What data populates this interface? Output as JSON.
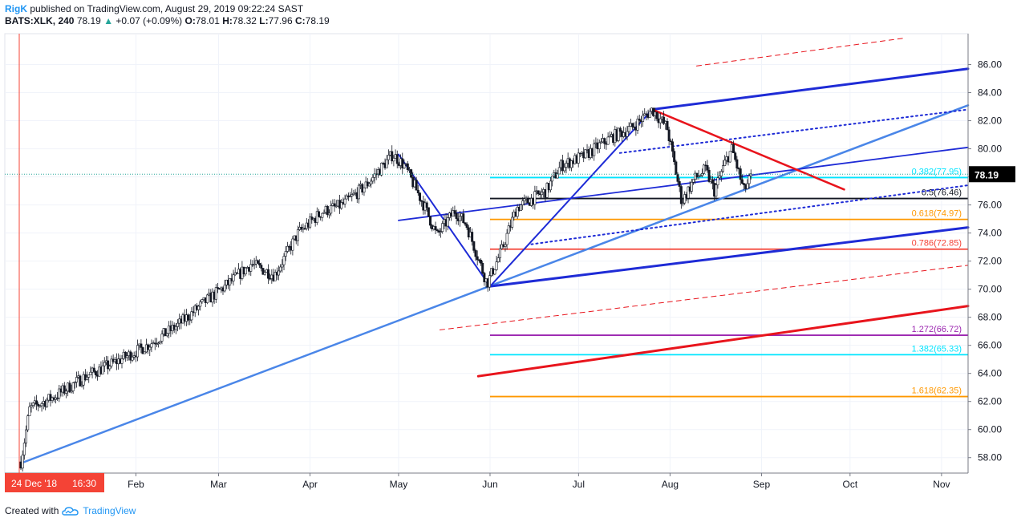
{
  "header": {
    "author": "RigK",
    "published": "published on TradingView.com, August 29, 2019 09:22:24 SAST",
    "ticker": "BATS:XLK, 240",
    "last": "78.19",
    "arrow": "▲",
    "change": "+0.07 (+0.09%)",
    "o_label": "O:",
    "o_value": "78.01",
    "h_label": "H:",
    "h_value": "78.32",
    "l_label": "L:",
    "l_value": "77.96",
    "c_label": "C:",
    "c_value": "78.19"
  },
  "footer": {
    "created": "Created with",
    "brand": "TradingView",
    "logo_icon": "tradingview-cloud-icon"
  },
  "cursor_label": {
    "date": "24 Dec '18",
    "time": "16:30"
  },
  "colors": {
    "candle_up": "#26a69a",
    "candle_down": "#ef5350",
    "fib_cyan": "#00e5ff",
    "fib_orange": "#ff9800",
    "fib_red": "#f44336",
    "fib_purple": "#9c27b0",
    "fib_black": "#131722",
    "trend_blue": "#1e2bd6",
    "trend_light": "#4a86e8",
    "trend_red": "#e8141c",
    "price_tag": "#000000"
  },
  "chart_data": {
    "type": "candlestick",
    "title": "",
    "x_ticks": [
      "Feb",
      "Mar",
      "Apr",
      "May",
      "Jun",
      "Jul",
      "Aug",
      "Sep",
      "Oct",
      "Nov"
    ],
    "y_ticks": [
      "58.00",
      "60.00",
      "62.00",
      "64.00",
      "66.00",
      "68.00",
      "70.00",
      "72.00",
      "74.00",
      "76.00",
      "78.00",
      "80.00",
      "82.00",
      "84.00",
      "86.00"
    ],
    "y_range": [
      56.9,
      88.2
    ],
    "last_price": 78.19,
    "last_price_label": "78.19",
    "x_range": [
      "2018-12-24",
      "2019-11-10"
    ],
    "month_ticks_dates": [
      "2019-02-01",
      "2019-03-01",
      "2019-04-01",
      "2019-05-01",
      "2019-06-01",
      "2019-07-01",
      "2019-08-01",
      "2019-09-01",
      "2019-10-01",
      "2019-11-01"
    ],
    "price_path": [
      [
        "2018-12-24",
        57.7
      ],
      [
        "2018-12-27",
        61.5
      ],
      [
        "2019-01-04",
        62.3
      ],
      [
        "2019-01-15",
        63.8
      ],
      [
        "2019-01-25",
        64.8
      ],
      [
        "2019-02-05",
        66.0
      ],
      [
        "2019-02-15",
        67.4
      ],
      [
        "2019-02-25",
        69.2
      ],
      [
        "2019-03-05",
        70.5
      ],
      [
        "2019-03-12",
        71.8
      ],
      [
        "2019-03-20",
        71.0
      ],
      [
        "2019-03-28",
        74.0
      ],
      [
        "2019-04-05",
        75.5
      ],
      [
        "2019-04-12",
        76.0
      ],
      [
        "2019-04-20",
        77.4
      ],
      [
        "2019-04-29",
        79.6
      ],
      [
        "2019-05-03",
        78.8
      ],
      [
        "2019-05-10",
        75.8
      ],
      [
        "2019-05-14",
        73.8
      ],
      [
        "2019-05-20",
        75.6
      ],
      [
        "2019-05-24",
        74.6
      ],
      [
        "2019-05-31",
        70.4
      ],
      [
        "2019-06-05",
        72.8
      ],
      [
        "2019-06-10",
        75.8
      ],
      [
        "2019-06-20",
        77.0
      ],
      [
        "2019-06-25",
        78.8
      ],
      [
        "2019-07-03",
        79.5
      ],
      [
        "2019-07-12",
        80.8
      ],
      [
        "2019-07-19",
        81.5
      ],
      [
        "2019-07-26",
        82.8
      ],
      [
        "2019-07-31",
        81.5
      ],
      [
        "2019-08-05",
        76.2
      ],
      [
        "2019-08-09",
        77.8
      ],
      [
        "2019-08-13",
        78.5
      ],
      [
        "2019-08-16",
        77.0
      ],
      [
        "2019-08-20",
        79.2
      ],
      [
        "2019-08-22",
        80.0
      ],
      [
        "2019-08-26",
        77.0
      ],
      [
        "2019-08-29",
        78.19
      ]
    ],
    "fib_levels": [
      {
        "label": "0.382(77.95)",
        "price": 77.95,
        "color": "#00e5ff"
      },
      {
        "label": "0.5(76.46)",
        "price": 76.46,
        "color": "#131722"
      },
      {
        "label": "0.618(74.97)",
        "price": 74.97,
        "color": "#ff9800"
      },
      {
        "label": "0.786(72.85)",
        "price": 72.85,
        "color": "#f44336"
      },
      {
        "label": "1.272(66.72)",
        "price": 66.72,
        "color": "#9c27b0"
      },
      {
        "label": "1.382(65.33)",
        "price": 65.33,
        "color": "#00e5ff"
      },
      {
        "label": "1.618(62.35)",
        "price": 62.35,
        "color": "#ff9800"
      }
    ],
    "fib_start_date": "2019-06-01",
    "trendlines": [
      {
        "from": [
          "2018-12-24",
          57.6
        ],
        "to": [
          "2019-11-10",
          83.1
        ],
        "color": "#4a86e8",
        "width": 2.5,
        "style": "solid"
      },
      {
        "from": [
          "2019-05-01",
          79.6
        ],
        "to": [
          "2019-06-01",
          70.2
        ],
        "color": "#1e2bd6",
        "width": 2,
        "style": "solid"
      },
      {
        "from": [
          "2019-06-01",
          70.2
        ],
        "to": [
          "2019-07-26",
          82.8
        ],
        "color": "#1e2bd6",
        "width": 2,
        "style": "solid"
      },
      {
        "from": [
          "2019-07-26",
          82.8
        ],
        "to": [
          "2019-11-10",
          85.7
        ],
        "color": "#1e2bd6",
        "width": 3,
        "style": "solid"
      },
      {
        "from": [
          "2019-06-01",
          70.2
        ],
        "to": [
          "2019-11-10",
          74.4
        ],
        "color": "#1e2bd6",
        "width": 3,
        "style": "solid"
      },
      {
        "from": [
          "2019-05-01",
          74.9
        ],
        "to": [
          "2019-11-10",
          80.1
        ],
        "color": "#1e2bd6",
        "width": 1.8,
        "style": "solid"
      },
      {
        "from": [
          "2019-07-15",
          79.7
        ],
        "to": [
          "2019-11-10",
          82.8
        ],
        "color": "#1e2bd6",
        "width": 2,
        "style": "dotted"
      },
      {
        "from": [
          "2019-06-15",
          73.2
        ],
        "to": [
          "2019-11-10",
          77.4
        ],
        "color": "#1e2bd6",
        "width": 2,
        "style": "dotted"
      },
      {
        "from": [
          "2019-07-26",
          82.8
        ],
        "to": [
          "2019-09-29",
          77.1
        ],
        "color": "#e8141c",
        "width": 2.5,
        "style": "solid"
      },
      {
        "from": [
          "2019-05-28",
          63.8
        ],
        "to": [
          "2019-11-10",
          68.8
        ],
        "color": "#e8141c",
        "width": 3,
        "style": "solid"
      },
      {
        "from": [
          "2019-08-10",
          85.9
        ],
        "to": [
          "2019-10-20",
          87.9
        ],
        "color": "#e8141c",
        "width": 1,
        "style": "dashed"
      },
      {
        "from": [
          "2019-05-15",
          67.1
        ],
        "to": [
          "2019-11-10",
          71.7
        ],
        "color": "#e8141c",
        "width": 1,
        "style": "dashed"
      }
    ]
  }
}
